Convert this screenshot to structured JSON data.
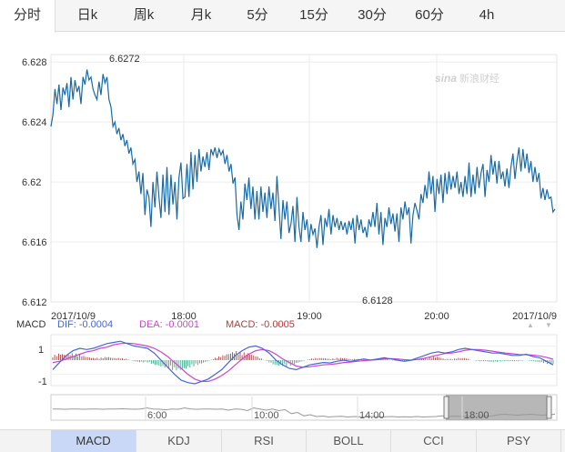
{
  "tabs": [
    {
      "label": "分时",
      "active": true
    },
    {
      "label": "日k"
    },
    {
      "label": "周k"
    },
    {
      "label": "月k"
    },
    {
      "label": "5分"
    },
    {
      "label": "15分"
    },
    {
      "label": "30分"
    },
    {
      "label": "60分"
    },
    {
      "label": "4h"
    }
  ],
  "watermark": "新浪财经",
  "chart_data": {
    "type": "line",
    "y_ticks": [
      "6.628",
      "6.624",
      "6.62",
      "6.616",
      "6.612"
    ],
    "ylim": [
      6.612,
      6.6285
    ],
    "x_labels": [
      "2017/10/9",
      "18:00",
      "19:00",
      "20:00",
      "2017/10/9"
    ],
    "high_label": "6.6272",
    "low_label": "6.6128",
    "grid": true,
    "line_color": "#1a6aa6",
    "series": [
      {
        "values": [
          6.6237,
          6.6245,
          6.6262,
          6.6252,
          6.6265,
          6.6248,
          6.6263,
          6.6258,
          6.6266,
          6.625,
          6.627,
          6.6255,
          6.6268,
          6.626,
          6.6264,
          6.6252,
          6.627,
          6.6265,
          6.6275,
          6.6268,
          6.627,
          6.6262,
          6.6258,
          6.6255,
          6.6267,
          6.6258,
          6.6272,
          6.6266,
          6.627,
          6.6255,
          6.625,
          6.6237,
          6.624,
          6.6232,
          6.6236,
          6.6228,
          6.6232,
          6.6224,
          6.6228,
          6.6219,
          6.6223,
          6.6212,
          6.6215,
          6.62,
          6.6207,
          6.6192,
          6.6206,
          6.6178,
          6.6195,
          6.619,
          6.617,
          6.62,
          6.6183,
          6.6207,
          6.619,
          6.6176,
          6.6205,
          6.618,
          6.621,
          6.6178,
          6.6205,
          6.6185,
          6.62,
          6.6175,
          6.6203,
          6.6213,
          6.6189,
          6.619,
          6.6212,
          6.619,
          6.622,
          6.6195,
          6.6218,
          6.62,
          6.6222,
          6.6207,
          6.6217,
          6.621,
          6.622,
          6.6208,
          6.6222,
          6.6218,
          6.6223,
          6.6216,
          6.6222,
          6.6218,
          6.6221,
          6.6212,
          6.6218,
          6.6207,
          6.6212,
          6.6199,
          6.6203,
          6.6178,
          6.6168,
          6.6187,
          6.6175,
          6.6199,
          6.6188,
          6.6203,
          6.6182,
          6.6197,
          6.6175,
          6.6194,
          6.6175,
          6.6197,
          6.618,
          6.6193,
          6.6176,
          6.6197,
          6.6182,
          6.6193,
          6.6174,
          6.6204,
          6.6183,
          6.6162,
          6.6188,
          6.6175,
          6.6187,
          6.6166,
          6.6172,
          6.6184,
          6.616,
          6.619,
          6.617,
          6.616,
          6.618,
          6.6168,
          6.6175,
          6.616,
          6.6172,
          6.6165,
          6.6169,
          6.6156,
          6.617,
          6.6178,
          6.6158,
          6.6176,
          6.617,
          6.6182,
          6.6165,
          6.6178,
          6.617,
          6.6176,
          6.6168,
          6.6174,
          6.6168,
          6.6173,
          6.6165,
          6.6174,
          6.6168,
          6.6176,
          6.6159,
          6.6178,
          6.6168,
          6.6175,
          6.6166,
          6.617,
          6.6163,
          6.6175,
          6.617,
          6.618,
          6.617,
          6.6186,
          6.6165,
          6.618,
          6.6158,
          6.6176,
          6.617,
          6.6183,
          6.6172,
          6.6179,
          6.6167,
          6.6179,
          6.616,
          6.6183,
          6.6175,
          6.6187,
          6.6178,
          6.6183,
          6.6159,
          6.6178,
          6.6186,
          6.6181,
          6.6175,
          6.6192,
          6.6186,
          6.6198,
          6.6189,
          6.6207,
          6.6192,
          6.6204,
          6.618,
          6.6202,
          6.6192,
          6.6205,
          6.6186,
          6.6206,
          6.6192,
          6.6207,
          6.6195,
          6.6204,
          6.6196,
          6.6207,
          6.6192,
          6.62,
          6.619,
          6.6204,
          6.6192,
          6.6213,
          6.619,
          6.6205,
          6.6192,
          6.621,
          6.6196,
          6.6206,
          6.6212,
          6.619,
          6.6208,
          6.62,
          6.6218,
          6.6205,
          6.6214,
          6.6199,
          6.6214,
          6.6202,
          6.6207,
          6.6197,
          6.6209,
          6.6196,
          6.621,
          6.6219,
          6.6202,
          6.6214,
          6.6223,
          6.6207,
          6.6222,
          6.6209,
          6.6219,
          6.6206,
          6.6214,
          6.62,
          6.621,
          6.62,
          6.6206,
          6.6189,
          6.6196,
          6.6188,
          6.6195,
          6.6189,
          6.619,
          6.618,
          6.6182
        ]
      }
    ]
  },
  "macd": {
    "title": "MACD",
    "dif_label": "DIF: -0.0004",
    "dea_label": "DEA: -0.0001",
    "macd_label": "MACD: -0.0005",
    "dif_color": "#4466dd",
    "dea_color": "#cc44cc",
    "macd_color": "#b33a3a",
    "y_ticks": [
      "1",
      "-1"
    ],
    "dif_values": [
      -0.4,
      -0.1,
      0.2,
      0.4,
      0.5,
      0.45,
      0.5,
      0.6,
      0.7,
      0.75,
      0.8,
      0.7,
      0.6,
      0.55,
      0.5,
      0.3,
      0.0,
      -0.3,
      -0.6,
      -0.85,
      -0.95,
      -1.0,
      -0.9,
      -0.8,
      -0.6,
      -0.4,
      -0.1,
      0.2,
      0.4,
      0.55,
      0.6,
      0.5,
      0.3,
      0.0,
      -0.2,
      -0.35,
      -0.4,
      -0.3,
      -0.2,
      -0.15,
      -0.1,
      -0.12,
      -0.05,
      0.0,
      -0.05,
      0.0,
      0.05,
      0.0,
      0.05,
      0.1,
      0.05,
      0.0,
      -0.05,
      0.0,
      0.1,
      0.2,
      0.3,
      0.35,
      0.3,
      0.35,
      0.45,
      0.5,
      0.45,
      0.4,
      0.35,
      0.3,
      0.3,
      0.25,
      0.2,
      0.2,
      0.25,
      0.15,
      0.1,
      -0.05,
      -0.2
    ],
    "dea_values": [
      -0.1,
      -0.05,
      0.05,
      0.15,
      0.25,
      0.35,
      0.4,
      0.5,
      0.55,
      0.65,
      0.7,
      0.72,
      0.7,
      0.65,
      0.6,
      0.5,
      0.35,
      0.15,
      -0.1,
      -0.35,
      -0.6,
      -0.8,
      -0.9,
      -0.9,
      -0.8,
      -0.65,
      -0.45,
      -0.2,
      0.05,
      0.25,
      0.4,
      0.45,
      0.4,
      0.25,
      0.05,
      -0.1,
      -0.25,
      -0.3,
      -0.28,
      -0.24,
      -0.2,
      -0.18,
      -0.15,
      -0.1,
      -0.08,
      -0.05,
      -0.02,
      0.0,
      0.02,
      0.05,
      0.06,
      0.05,
      0.02,
      0.0,
      0.03,
      0.08,
      0.15,
      0.22,
      0.28,
      0.3,
      0.35,
      0.42,
      0.45,
      0.45,
      0.42,
      0.38,
      0.34,
      0.3,
      0.27,
      0.24,
      0.23,
      0.21,
      0.18,
      0.12,
      0.04
    ],
    "hist_values": [
      0.4,
      0.6,
      0.5,
      0.6,
      0.5,
      0.3,
      0.2,
      0.2,
      0.3,
      0.2,
      0.2,
      0.1,
      -0.1,
      -0.2,
      -0.2,
      -0.4,
      -0.6,
      -0.7,
      -0.9,
      -0.9,
      -0.7,
      -0.5,
      -0.3,
      -0.1,
      0.2,
      0.4,
      0.6,
      0.8,
      0.7,
      0.6,
      0.4,
      0.1,
      -0.2,
      -0.5,
      -0.5,
      -0.5,
      -0.3,
      -0.1,
      0.1,
      0.2,
      0.2,
      0.1,
      0.2,
      0.2,
      0.1,
      0.1,
      0.1,
      0.0,
      0.1,
      0.1,
      0.0,
      -0.1,
      -0.1,
      0.0,
      0.1,
      0.2,
      0.3,
      0.3,
      0.1,
      0.1,
      0.2,
      0.2,
      0.0,
      -0.1,
      -0.1,
      -0.2,
      -0.1,
      -0.1,
      -0.1,
      -0.1,
      0.0,
      -0.1,
      -0.2,
      -0.3,
      -0.4
    ]
  },
  "navigator": {
    "labels": [
      "6:00",
      "10:00",
      "14:00",
      "18:00"
    ],
    "values": [
      0.55,
      0.55,
      0.56,
      0.55,
      0.55,
      0.56,
      0.55,
      0.55,
      0.56,
      0.55,
      0.55,
      0.54,
      0.55,
      0.56,
      0.55,
      0.5,
      0.55,
      0.56,
      0.58,
      0.55,
      0.56,
      0.5,
      0.55,
      0.56,
      0.55,
      0.55,
      0.56,
      0.55,
      0.6,
      0.55,
      0.56,
      0.62,
      0.5,
      0.55,
      0.6,
      0.55,
      0.62,
      0.58,
      0.75,
      0.7,
      0.85,
      0.8,
      0.88,
      0.86,
      0.9,
      0.88,
      0.87,
      0.9,
      0.88,
      0.89,
      0.9,
      0.88,
      0.9,
      0.89,
      0.88,
      0.9,
      0.89,
      0.9,
      0.88,
      0.9,
      0.89,
      0.88,
      0.85,
      0.88,
      0.86,
      0.88,
      0.87,
      0.9,
      0.88,
      0.86,
      0.85,
      0.8,
      0.78,
      0.8,
      0.82,
      0.8,
      0.78,
      0.8,
      0.82,
      0.8,
      0.78
    ]
  },
  "indicator_tabs": [
    {
      "label": "MACD",
      "active": true
    },
    {
      "label": "KDJ"
    },
    {
      "label": "RSI"
    },
    {
      "label": "BOLL"
    },
    {
      "label": "CCI"
    },
    {
      "label": "PSY"
    }
  ]
}
